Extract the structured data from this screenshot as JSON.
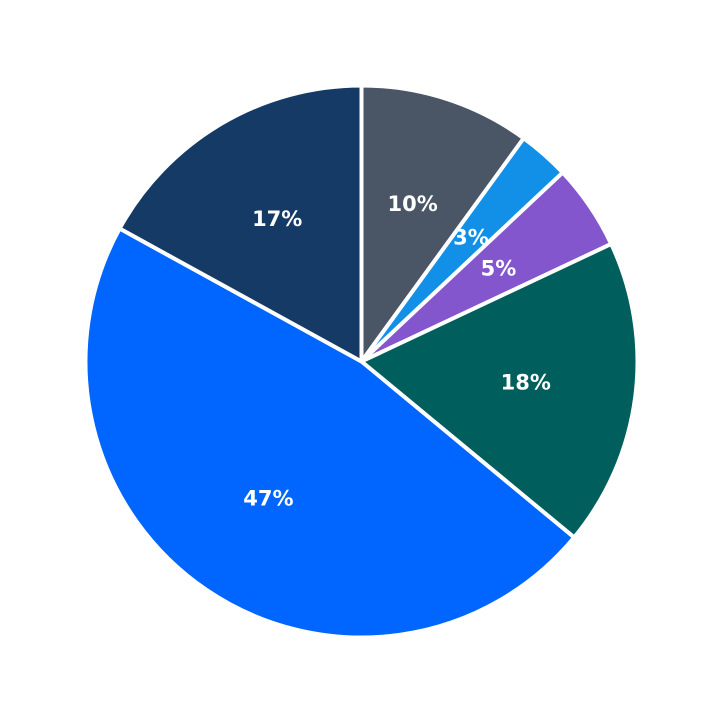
{
  "chart_data": {
    "type": "pie",
    "start_angle_deg": 90,
    "direction": "clockwise",
    "slices": [
      {
        "value": 10,
        "label": "10%",
        "color": "#4a5565"
      },
      {
        "value": 3,
        "label": "3%",
        "color": "#1290e8"
      },
      {
        "value": 5,
        "label": "5%",
        "color": "#8456ce"
      },
      {
        "value": 18,
        "label": "18%",
        "color": "#005e5d"
      },
      {
        "value": 47,
        "label": "47%",
        "color": "#0066ff"
      },
      {
        "value": 17,
        "label": "17%",
        "color": "#143a65"
      }
    ]
  }
}
